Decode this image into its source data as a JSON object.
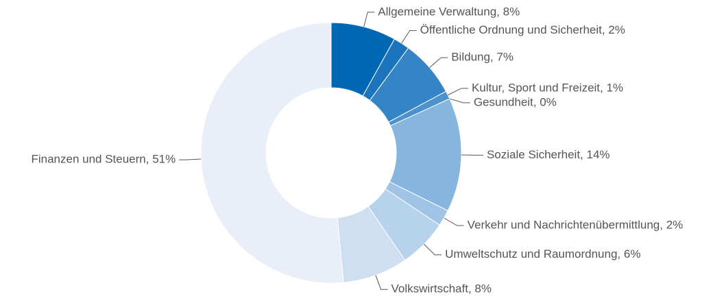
{
  "chart_data": {
    "type": "donut",
    "values": [
      8,
      2,
      7,
      1,
      0,
      14,
      2,
      6,
      8,
      51
    ],
    "value_labels": [
      "Allgemeine Verwaltung, 8%",
      "Öffentliche Ordnung und Sicherheit, 2%",
      "Bildung, 7%",
      "Kultur, Sport und Freizeit, 1%",
      "Gesundheit, 0%",
      "Soziale Sicherheit, 14%",
      "Verkehr und Nachrichtenübermittlung, 2%",
      "Umweltschutz und Raumordnung, 6%",
      "Volkswirtschaft, 8%",
      "Finanzen und Steuern, 51%"
    ],
    "colors": [
      "#0067b4",
      "#1c74bd",
      "#3585c6",
      "#4c93cd",
      "#5e9fd3",
      "#86b5de",
      "#a0c4e6",
      "#b7d3ec",
      "#cfdff2",
      "#e9eef9"
    ]
  }
}
